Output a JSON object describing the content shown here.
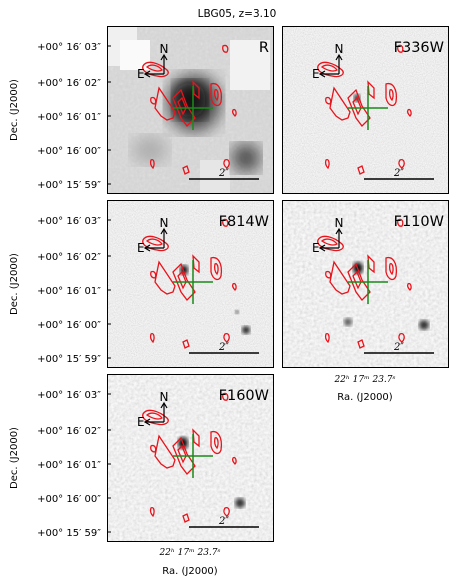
{
  "figure": {
    "title": "LBG05, z=3.10",
    "dec_label": "Dec. (J2000)",
    "ra_label": "Ra. (J2000)",
    "dec_ticks": [
      "+00° 16′ 03″",
      "+00° 16′ 02″",
      "+00° 16′ 01″",
      "+00° 16′ 00″",
      "+00° 15′ 59″"
    ],
    "ra_tick": "22ʰ 17ᵐ 23.7ˢ",
    "north": "N",
    "east": "E",
    "scale_bar": "2″",
    "panels": [
      {
        "band": "R"
      },
      {
        "band": "F336W"
      },
      {
        "band": "F814W"
      },
      {
        "band": "F110W"
      },
      {
        "band": "F160W"
      }
    ],
    "colors": {
      "contour": "#e8141c",
      "crosshair": "#1a8a1a",
      "frame": "#000000"
    }
  }
}
